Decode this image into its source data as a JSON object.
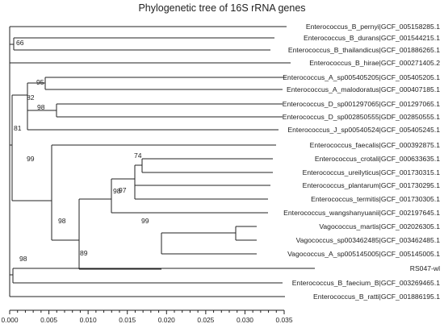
{
  "title": "Phylogenetic tree of  16S rRNA genes",
  "highlight_color": "#e8322c",
  "line_color": "#222222",
  "leaves": [
    {
      "label": "Enterococcus_B_pernyi|GCF_005158285.1"
    },
    {
      "label": "Enterococcus_B_durans|GCF_001544215.1"
    },
    {
      "label": "Enterococcus_B_thailandicus|GCF_001886265.1"
    },
    {
      "label": "Enterococcus_B_hirae|GCF_000271405.2"
    },
    {
      "label": "Enterococcus_A_sp005405205|GCF_005405205.1"
    },
    {
      "label": "Enterococcus_A_malodoratus|GCF_000407185.1"
    },
    {
      "label": "Enterococcus_D_sp001297065|GCF_001297065.1"
    },
    {
      "label": "Enterococcus_D_sp002850555|GDF_002850555.1"
    },
    {
      "label": "Enterococcus_J_sp00540524|GCF_005405245.1"
    },
    {
      "label": "Enterococcus_faecalis|GCF_000392875.1"
    },
    {
      "label": "Enterococcus_crotali|GCF_000633635.1"
    },
    {
      "label": "Enterococcus_ureilyticus|GCF_001730315.1"
    },
    {
      "label": "Enterococcus_plantarum|GCF_001730295.1"
    },
    {
      "label": "Enterococcus_termitis|GCF_001730305.1"
    },
    {
      "label": "Enterococcus_wangshanyuanii|GCF_002197645.1"
    },
    {
      "label": "Vagococcus_martis|GCF_002026305.1"
    },
    {
      "label": "Vagococcus_sp003462485|GCF_003462485.1"
    },
    {
      "label": "Vagococcus_A_sp005145005|GCF_005145005.1"
    },
    {
      "label": "RS047-wl",
      "highlight": true
    },
    {
      "label": "Enterococcus_B_faecium_B|GCF_003269465.1"
    },
    {
      "label": "Enterococcus_B_ratti|GCF_001886195.1"
    }
  ],
  "bootstrap": [
    "66",
    "95",
    "82",
    "98",
    "81",
    "99",
    "74",
    "97",
    "98",
    "99",
    "98",
    "89",
    "98"
  ],
  "scale": {
    "ticks": [
      "0.000",
      "0.005",
      "0.010",
      "0.015",
      "0.020",
      "0.025",
      "0.030",
      "0.035"
    ]
  }
}
